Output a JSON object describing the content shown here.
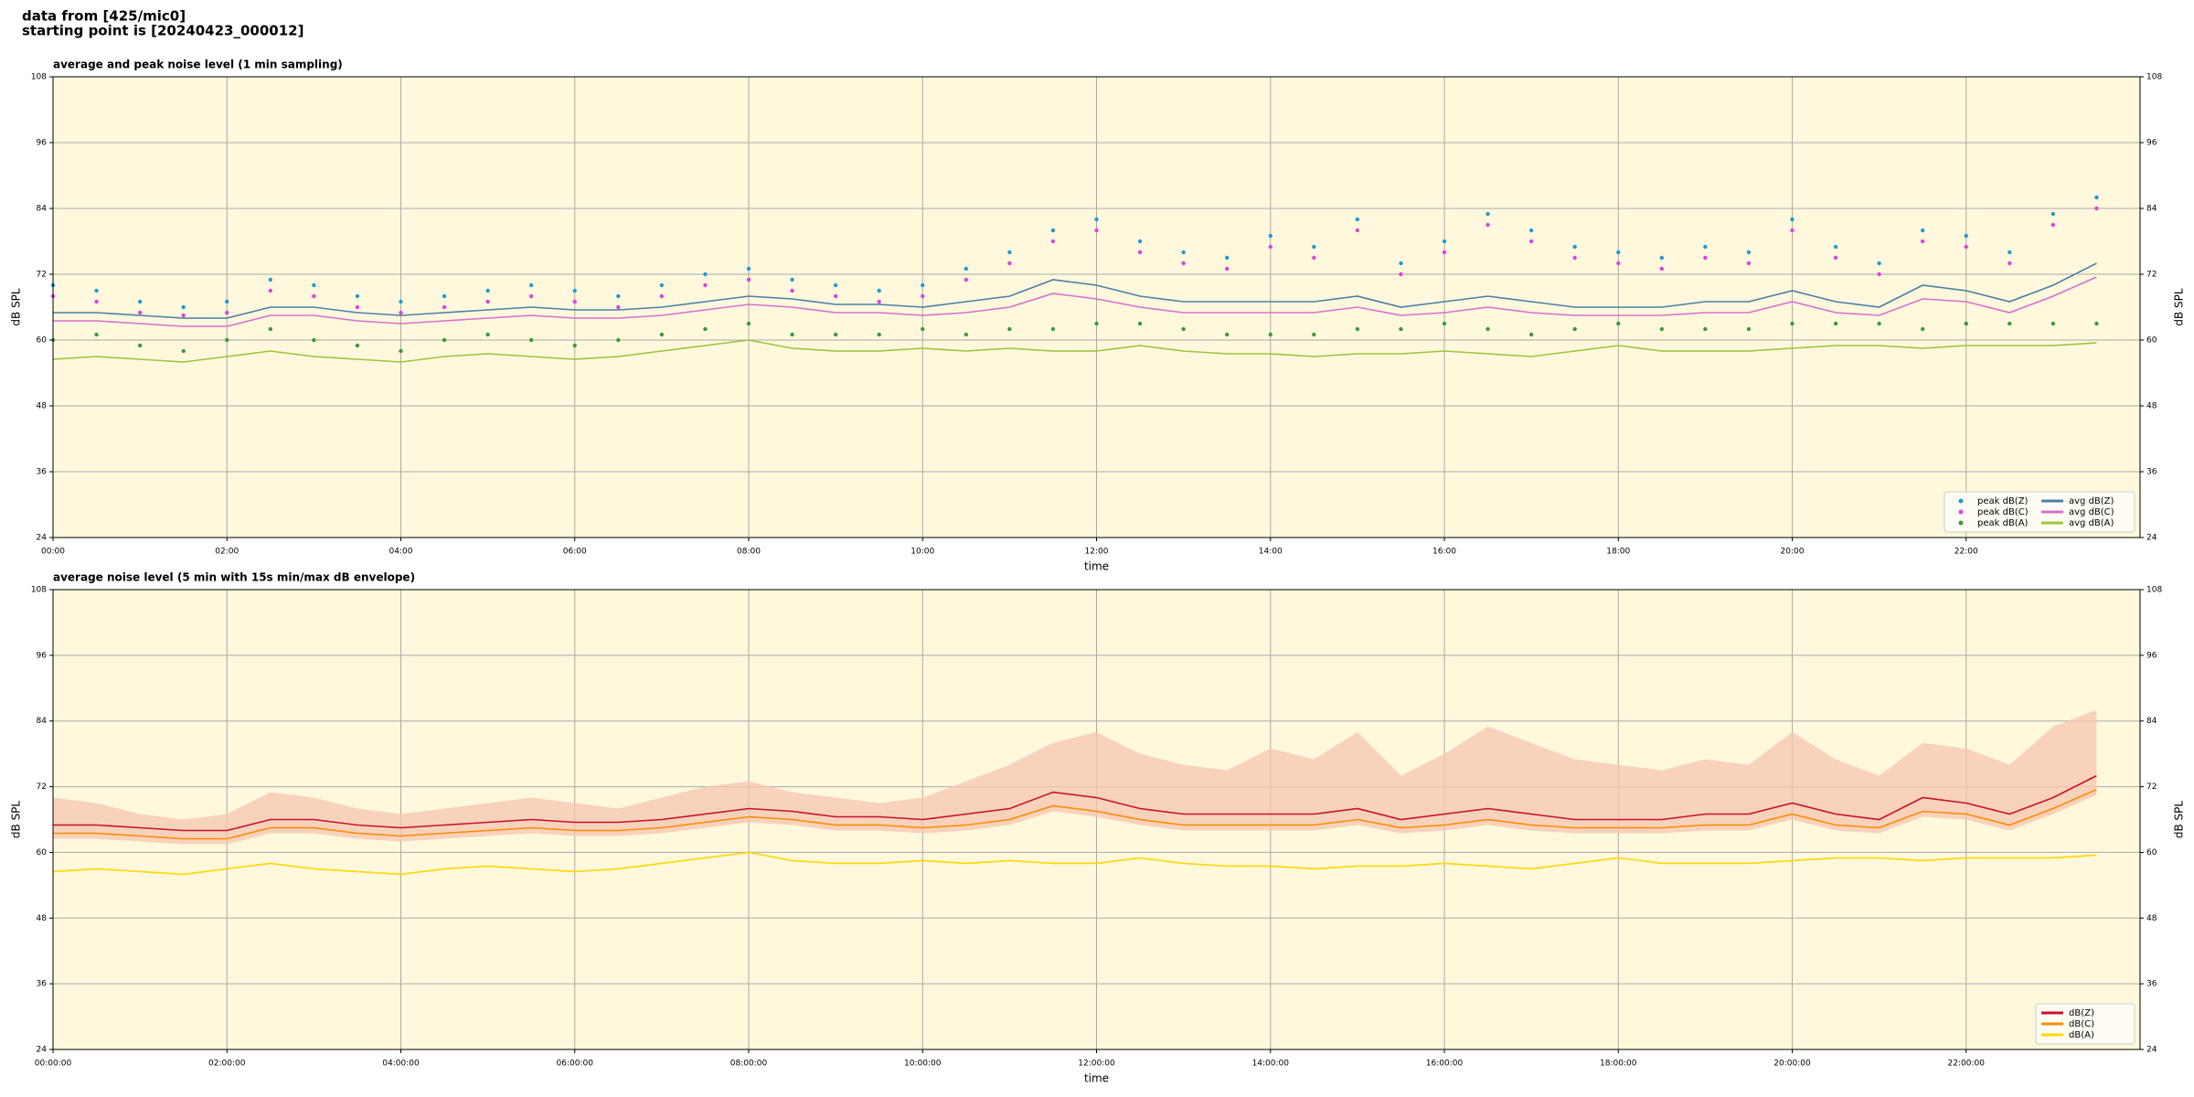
{
  "header": {
    "line1": "data from [425/mic0]",
    "line2": "starting point is [20240423_000012]"
  },
  "chart_data": [
    {
      "type": "line",
      "title": "average and peak noise level (1 min sampling)",
      "xlabel": "time",
      "ylabel": "dB SPL",
      "y2label": "dB SPL",
      "background": "#fff8dc",
      "grid": true,
      "legend": {
        "loc": "lower right",
        "ncol": 2
      },
      "xlim": [
        0,
        24
      ],
      "ylim": [
        24,
        108
      ],
      "y2lim": [
        24,
        108
      ],
      "xticks": [
        {
          "value": 0,
          "label": "00:00"
        },
        {
          "value": 2,
          "label": "02:00"
        },
        {
          "value": 4,
          "label": "04:00"
        },
        {
          "value": 6,
          "label": "06:00"
        },
        {
          "value": 8,
          "label": "08:00"
        },
        {
          "value": 10,
          "label": "10:00"
        },
        {
          "value": 12,
          "label": "12:00"
        },
        {
          "value": 14,
          "label": "14:00"
        },
        {
          "value": 16,
          "label": "16:00"
        },
        {
          "value": 18,
          "label": "18:00"
        },
        {
          "value": 20,
          "label": "20:00"
        },
        {
          "value": 22,
          "label": "22:00"
        }
      ],
      "yticks": [
        24,
        36,
        48,
        60,
        72,
        84,
        96,
        108
      ],
      "y2ticks": [
        24,
        36,
        48,
        60,
        72,
        84,
        96,
        108
      ],
      "x": [
        0,
        0.5,
        1,
        1.5,
        2,
        2.5,
        3,
        3.5,
        4,
        4.5,
        5,
        5.5,
        6,
        6.5,
        7,
        7.5,
        8,
        8.5,
        9,
        9.5,
        10,
        10.5,
        11,
        11.5,
        12,
        12.5,
        13,
        13.5,
        14,
        14.5,
        15,
        15.5,
        16,
        16.5,
        17,
        17.5,
        18,
        18.5,
        19,
        19.5,
        20,
        20.5,
        21,
        21.5,
        22,
        22.5,
        23,
        23.5
      ],
      "series": [
        {
          "name": "peak dB(Z)",
          "mode": "markers",
          "color": "#1f9bd6",
          "values": [
            70,
            69,
            67,
            66,
            67,
            71,
            70,
            68,
            67,
            68,
            69,
            70,
            69,
            68,
            70,
            72,
            73,
            71,
            70,
            69,
            70,
            73,
            76,
            80,
            82,
            78,
            76,
            75,
            79,
            77,
            82,
            74,
            78,
            83,
            80,
            77,
            76,
            75,
            77,
            76,
            82,
            77,
            74,
            80,
            79,
            76,
            83,
            86
          ]
        },
        {
          "name": "peak dB(C)",
          "mode": "markers",
          "color": "#e040e0",
          "values": [
            68,
            67,
            65,
            64.5,
            65,
            69,
            68,
            66,
            65,
            66,
            67,
            68,
            67,
            66,
            68,
            70,
            71,
            69,
            68,
            67,
            68,
            71,
            74,
            78,
            80,
            76,
            74,
            73,
            77,
            75,
            80,
            72,
            76,
            81,
            78,
            75,
            74,
            73,
            75,
            74,
            80,
            75,
            72,
            78,
            77,
            74,
            81,
            84
          ]
        },
        {
          "name": "peak dB(A)",
          "mode": "markers",
          "color": "#3a9a3a",
          "values": [
            60,
            61,
            59,
            58,
            60,
            62,
            60,
            59,
            58,
            60,
            61,
            60,
            59,
            60,
            61,
            62,
            63,
            61,
            61,
            61,
            62,
            61,
            62,
            62,
            63,
            63,
            62,
            61,
            61,
            61,
            62,
            62,
            63,
            62,
            61,
            62,
            63,
            62,
            62,
            62,
            63,
            63,
            63,
            62,
            63,
            63,
            63,
            63
          ]
        },
        {
          "name": "avg dB(Z)",
          "mode": "lines",
          "color": "#4a7fa8",
          "values": [
            65,
            65,
            64.5,
            64,
            64,
            66,
            66,
            65,
            64.5,
            65,
            65.5,
            66,
            65.5,
            65.5,
            66,
            67,
            68,
            67.5,
            66.5,
            66.5,
            66,
            67,
            68,
            71,
            70,
            68,
            67,
            67,
            67,
            67,
            68,
            66,
            67,
            68,
            67,
            66,
            66,
            66,
            67,
            67,
            69,
            67,
            66,
            70,
            69,
            67,
            70,
            74
          ]
        },
        {
          "name": "avg dB(C)",
          "mode": "lines",
          "color": "#d86fd0",
          "values": [
            63.5,
            63.5,
            63,
            62.5,
            62.5,
            64.5,
            64.5,
            63.5,
            63,
            63.5,
            64,
            64.5,
            64,
            64,
            64.5,
            65.5,
            66.5,
            66,
            65,
            65,
            64.5,
            65,
            66,
            68.5,
            67.5,
            66,
            65,
            65,
            65,
            65,
            66,
            64.5,
            65,
            66,
            65,
            64.5,
            64.5,
            64.5,
            65,
            65,
            67,
            65,
            64.5,
            67.5,
            67,
            65,
            68,
            71.5
          ]
        },
        {
          "name": "avg dB(A)",
          "mode": "lines",
          "color": "#9cc43a",
          "values": [
            56.5,
            57,
            56.5,
            56,
            57,
            58,
            57,
            56.5,
            56,
            57,
            57.5,
            57,
            56.5,
            57,
            58,
            59,
            60,
            58.5,
            58,
            58,
            58.5,
            58,
            58.5,
            58,
            58,
            59,
            58,
            57.5,
            57.5,
            57,
            57.5,
            57.5,
            58,
            57.5,
            57,
            58,
            59,
            58,
            58,
            58,
            58.5,
            59,
            59,
            58.5,
            59,
            59,
            59,
            59.5
          ]
        }
      ]
    },
    {
      "type": "line",
      "title": "average noise level (5 min with 15s min/max dB envelope)",
      "xlabel": "time",
      "ylabel": "dB SPL",
      "y2label": "dB SPL",
      "background": "#fff8dc",
      "grid": true,
      "legend": {
        "loc": "lower right",
        "ncol": 1
      },
      "xlim": [
        0,
        24
      ],
      "ylim": [
        24,
        108
      ],
      "y2lim": [
        24,
        108
      ],
      "xticks": [
        {
          "value": 0,
          "label": "00:00:00"
        },
        {
          "value": 2,
          "label": "02:00:00"
        },
        {
          "value": 4,
          "label": "04:00:00"
        },
        {
          "value": 6,
          "label": "06:00:00"
        },
        {
          "value": 8,
          "label": "08:00:00"
        },
        {
          "value": 10,
          "label": "10:00:00"
        },
        {
          "value": 12,
          "label": "12:00:00"
        },
        {
          "value": 14,
          "label": "14:00:00"
        },
        {
          "value": 16,
          "label": "16:00:00"
        },
        {
          "value": 18,
          "label": "18:00:00"
        },
        {
          "value": 20,
          "label": "20:00:00"
        },
        {
          "value": 22,
          "label": "22:00:00"
        }
      ],
      "yticks": [
        24,
        36,
        48,
        60,
        72,
        84,
        96,
        108
      ],
      "y2ticks": [
        24,
        36,
        48,
        60,
        72,
        84,
        96,
        108
      ],
      "x": [
        0,
        0.5,
        1,
        1.5,
        2,
        2.5,
        3,
        3.5,
        4,
        4.5,
        5,
        5.5,
        6,
        6.5,
        7,
        7.5,
        8,
        8.5,
        9,
        9.5,
        10,
        10.5,
        11,
        11.5,
        12,
        12.5,
        13,
        13.5,
        14,
        14.5,
        15,
        15.5,
        16,
        16.5,
        17,
        17.5,
        18,
        18.5,
        19,
        19.5,
        20,
        20.5,
        21,
        21.5,
        22,
        22.5,
        23,
        23.5
      ],
      "envelope": {
        "color": "#f5c6b0",
        "max": [
          70,
          69,
          67,
          66,
          67,
          71,
          70,
          68,
          67,
          68,
          69,
          70,
          69,
          68,
          70,
          72,
          73,
          71,
          70,
          69,
          70,
          73,
          76,
          80,
          82,
          78,
          76,
          75,
          79,
          77,
          82,
          74,
          78,
          83,
          80,
          77,
          76,
          75,
          77,
          76,
          82,
          77,
          74,
          80,
          79,
          76,
          83,
          86
        ],
        "min": [
          62.5,
          62.5,
          62,
          61.5,
          61.5,
          63.5,
          63.5,
          62.5,
          62,
          62.5,
          63,
          63.5,
          63,
          63,
          63.5,
          64.5,
          65.5,
          65,
          64,
          64,
          63.5,
          64,
          65,
          67.5,
          66.5,
          65,
          64,
          64,
          64,
          64,
          65,
          63.5,
          64,
          65,
          64,
          63.5,
          63.5,
          63.5,
          64,
          64,
          66,
          64,
          63.5,
          66.5,
          66,
          64,
          67,
          70.5
        ]
      },
      "series": [
        {
          "name": "dB(Z)",
          "mode": "lines",
          "color": "#c8102e",
          "values": [
            65,
            65,
            64.5,
            64,
            64,
            66,
            66,
            65,
            64.5,
            65,
            65.5,
            66,
            65.5,
            65.5,
            66,
            67,
            68,
            67.5,
            66.5,
            66.5,
            66,
            67,
            68,
            71,
            70,
            68,
            67,
            67,
            67,
            67,
            68,
            66,
            67,
            68,
            67,
            66,
            66,
            66,
            67,
            67,
            69,
            67,
            66,
            70,
            69,
            67,
            70,
            74
          ]
        },
        {
          "name": "dB(C)",
          "mode": "lines",
          "color": "#ff8c00",
          "values": [
            63.5,
            63.5,
            63,
            62.5,
            62.5,
            64.5,
            64.5,
            63.5,
            63,
            63.5,
            64,
            64.5,
            64,
            64,
            64.5,
            65.5,
            66.5,
            66,
            65,
            65,
            64.5,
            65,
            66,
            68.5,
            67.5,
            66,
            65,
            65,
            65,
            65,
            66,
            64.5,
            65,
            66,
            65,
            64.5,
            64.5,
            64.5,
            65,
            65,
            67,
            65,
            64.5,
            67.5,
            67,
            65,
            68,
            71.5
          ]
        },
        {
          "name": "dB(A)",
          "mode": "lines",
          "color": "#ffd700",
          "values": [
            56.5,
            57,
            56.5,
            56,
            57,
            58,
            57,
            56.5,
            56,
            57,
            57.5,
            57,
            56.5,
            57,
            58,
            59,
            60,
            58.5,
            58,
            58,
            58.5,
            58,
            58.5,
            58,
            58,
            59,
            58,
            57.5,
            57.5,
            57,
            57.5,
            57.5,
            58,
            57.5,
            57,
            58,
            59,
            58,
            58,
            58,
            58.5,
            59,
            59,
            58.5,
            59,
            59,
            59,
            59.5
          ]
        }
      ]
    }
  ]
}
